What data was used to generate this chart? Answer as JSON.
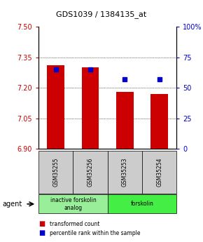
{
  "title": "GDS1039 / 1384135_at",
  "samples": [
    "GSM35255",
    "GSM35256",
    "GSM35253",
    "GSM35254"
  ],
  "bar_values": [
    7.31,
    7.3,
    7.18,
    7.17
  ],
  "percentile_values": [
    65,
    65,
    57,
    57
  ],
  "ymin": 6.9,
  "ymax": 7.5,
  "yticks": [
    6.9,
    7.05,
    7.2,
    7.35,
    7.5
  ],
  "y2ticks": [
    0,
    25,
    50,
    75,
    100
  ],
  "y2labels": [
    "0",
    "25",
    "50",
    "75",
    "100%"
  ],
  "bar_color": "#cc0000",
  "dot_color": "#0000cc",
  "agent_groups": [
    {
      "label": "inactive forskolin\nanalog",
      "samples": [
        0,
        1
      ],
      "color": "#99ee99"
    },
    {
      "label": "forskolin",
      "samples": [
        2,
        3
      ],
      "color": "#44ee44"
    }
  ],
  "legend_items": [
    {
      "color": "#cc0000",
      "label": "transformed count"
    },
    {
      "color": "#0000cc",
      "label": "percentile rank within the sample"
    }
  ],
  "agent_label": "agent",
  "figsize": [
    2.9,
    3.45
  ],
  "dpi": 100
}
